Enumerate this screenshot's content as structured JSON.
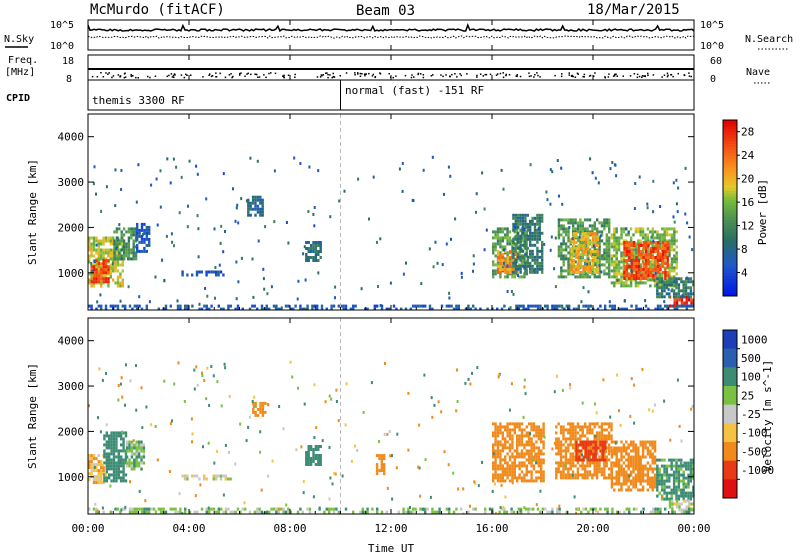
{
  "header": {
    "station": "McMurdo (fitACF)",
    "beam": "Beam 03",
    "date": "18/Mar/2015"
  },
  "top_panels": {
    "nsky_label": "N.Sky",
    "nsearch_label": "N.Search",
    "freq_label_1": "Freq.",
    "freq_label_2": "[MHz]",
    "nave_label": "Nave",
    "cpid_label": "CPID",
    "noise_ticks_left": [
      "10^5",
      "10^0"
    ],
    "noise_ticks_right": [
      "10^5",
      "10^0"
    ],
    "freq_ticks": [
      "18",
      "8"
    ],
    "nave_ticks": [
      "60",
      "0"
    ],
    "cpid_left": "themis 3300 RF",
    "cpid_right": "normal (fast) -151 RF",
    "cpid_change_hour": 10
  },
  "chart_data": [
    {
      "type": "heatmap",
      "panel": "power",
      "ylabel": "Slant Range [km]",
      "xlabel": "",
      "x_range_hours": [
        0,
        24
      ],
      "ylim": [
        180,
        4500
      ],
      "yticks": [
        1000,
        2000,
        3000,
        4000
      ],
      "colorbar": {
        "label": "Power [dB]",
        "ticks": [
          "28",
          "24",
          "20",
          "16",
          "12",
          "8",
          "4"
        ],
        "range": [
          0,
          30
        ]
      },
      "patches": [
        {
          "t0": 0.0,
          "t1": 1.4,
          "r0": 700,
          "r1": 1800,
          "v": 18
        },
        {
          "t0": 0.1,
          "t1": 0.8,
          "r0": 800,
          "r1": 1300,
          "v": 26
        },
        {
          "t0": 1.0,
          "t1": 1.9,
          "r0": 1300,
          "r1": 2000,
          "v": 12
        },
        {
          "t0": 1.9,
          "t1": 2.4,
          "r0": 1500,
          "r1": 2100,
          "v": 6
        },
        {
          "t0": 3.7,
          "t1": 5.7,
          "r0": 950,
          "r1": 1050,
          "v": 6
        },
        {
          "t0": 6.3,
          "t1": 6.9,
          "r0": 2300,
          "r1": 2700,
          "v": 8
        },
        {
          "t0": 8.6,
          "t1": 9.2,
          "r0": 1300,
          "r1": 1700,
          "v": 9
        },
        {
          "t0": 16.0,
          "t1": 17.4,
          "r0": 900,
          "r1": 2000,
          "v": 14
        },
        {
          "t0": 16.2,
          "t1": 17.0,
          "r0": 1000,
          "r1": 1500,
          "v": 22
        },
        {
          "t0": 16.8,
          "t1": 18.0,
          "r0": 1000,
          "r1": 2300,
          "v": 10
        },
        {
          "t0": 18.6,
          "t1": 20.6,
          "r0": 900,
          "r1": 2200,
          "v": 13
        },
        {
          "t0": 19.1,
          "t1": 20.2,
          "r0": 1000,
          "r1": 1900,
          "v": 20
        },
        {
          "t0": 20.7,
          "t1": 23.3,
          "r0": 700,
          "r1": 2000,
          "v": 16
        },
        {
          "t0": 21.2,
          "t1": 23.0,
          "r0": 850,
          "r1": 1700,
          "v": 26
        },
        {
          "t0": 23.0,
          "t1": 24.0,
          "r0": 250,
          "r1": 500,
          "v": 28
        },
        {
          "t0": 22.5,
          "t1": 24.0,
          "r0": 500,
          "r1": 900,
          "v": 10
        },
        {
          "t0": 0.0,
          "t1": 24.0,
          "r0": 180,
          "r1": 300,
          "v": 6
        }
      ]
    },
    {
      "type": "heatmap",
      "panel": "velocity",
      "ylabel": "Slant Range [km]",
      "xlabel": "Time UT",
      "x_range_hours": [
        0,
        24
      ],
      "xticks": [
        "00:00",
        "04:00",
        "08:00",
        "12:00",
        "16:00",
        "20:00",
        "00:00"
      ],
      "ylim": [
        180,
        4500
      ],
      "yticks": [
        1000,
        2000,
        3000,
        4000
      ],
      "colorbar": {
        "label": "Velocity [m s^-1]",
        "ticks": [
          "1000",
          "500",
          "100",
          "25",
          "-25",
          "-100",
          "-500",
          "-1000"
        ],
        "range": [
          -1000,
          1000
        ]
      },
      "patches": [
        {
          "t0": 0.0,
          "t1": 0.6,
          "r0": 900,
          "r1": 1500,
          "v": -80
        },
        {
          "t0": 0.6,
          "t1": 1.5,
          "r0": 900,
          "r1": 2000,
          "v": 400
        },
        {
          "t0": 1.5,
          "t1": 2.2,
          "r0": 1200,
          "r1": 1800,
          "v": 80
        },
        {
          "t0": 3.7,
          "t1": 5.7,
          "r0": 950,
          "r1": 1050,
          "v": 20
        },
        {
          "t0": 6.5,
          "t1": 7.0,
          "r0": 2350,
          "r1": 2650,
          "v": -400
        },
        {
          "t0": 8.6,
          "t1": 9.2,
          "r0": 1300,
          "r1": 1700,
          "v": 200
        },
        {
          "t0": 11.4,
          "t1": 11.7,
          "r0": 1100,
          "r1": 1500,
          "v": -300
        },
        {
          "t0": 16.0,
          "t1": 18.0,
          "r0": 900,
          "r1": 2200,
          "v": -300
        },
        {
          "t0": 18.5,
          "t1": 20.7,
          "r0": 950,
          "r1": 2200,
          "v": -250
        },
        {
          "t0": 19.3,
          "t1": 20.5,
          "r0": 1400,
          "r1": 1800,
          "v": -700
        },
        {
          "t0": 20.7,
          "t1": 22.5,
          "r0": 700,
          "r1": 1800,
          "v": -200
        },
        {
          "t0": 22.5,
          "t1": 24.0,
          "r0": 500,
          "r1": 1400,
          "v": 150
        },
        {
          "t0": 23.0,
          "t1": 24.0,
          "r0": 250,
          "r1": 500,
          "v": 10
        },
        {
          "t0": 0.0,
          "t1": 24.0,
          "r0": 180,
          "r1": 320,
          "v": 60
        }
      ]
    }
  ]
}
